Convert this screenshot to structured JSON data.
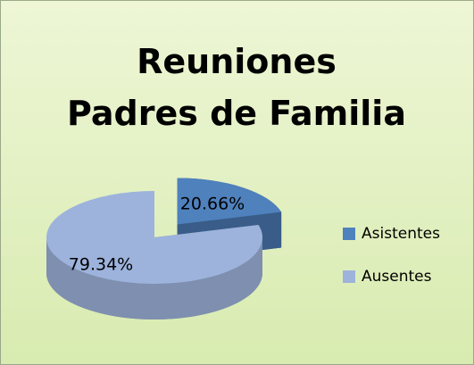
{
  "chart_data": {
    "type": "pie",
    "title": "Reuniones Padres de Familia",
    "categories": [
      "Asistentes",
      "Ausentes"
    ],
    "values": [
      20.66,
      79.34
    ],
    "value_labels": [
      "20.66%",
      "79.34%"
    ],
    "colors": [
      "#4f81bd",
      "#9db3dc"
    ],
    "legend": "right"
  }
}
